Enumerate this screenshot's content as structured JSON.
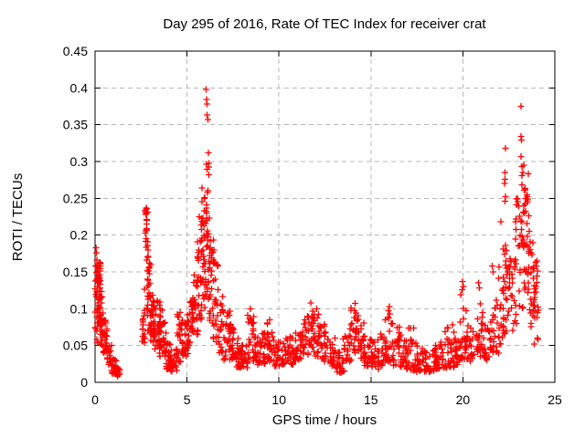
{
  "window": {
    "background": "#ffffff",
    "border_color": "#000000",
    "text_color": "#000000"
  },
  "chart_data": {
    "type": "scatter",
    "title": "Day 295 of 2016, Rate Of TEC Index for receiver crat",
    "xlabel": "GPS time / hours",
    "ylabel": "ROTI / TECUs",
    "xlim": [
      0,
      25
    ],
    "ylim": [
      0,
      0.45
    ],
    "xticks": {
      "values": [
        0,
        5,
        10,
        15,
        20,
        25
      ],
      "labels": [
        "0",
        "5",
        "10",
        "15",
        "20",
        "25"
      ]
    },
    "yticks": {
      "values": [
        0,
        0.05,
        0.1,
        0.15,
        0.2,
        0.25,
        0.3,
        0.35,
        0.4,
        0.45
      ],
      "labels": [
        "0",
        "0.05",
        "0.1",
        "0.15",
        "0.2",
        "0.25",
        "0.3",
        "0.35",
        "0.4",
        "0.45"
      ]
    },
    "grid": {
      "show": true,
      "color": "#b8b8b8",
      "dash": "5,4"
    },
    "legend": "none",
    "marker": {
      "shape": "plus",
      "color": "#ff0000",
      "size": 7,
      "stroke_width": 1.35
    },
    "seed": 20161021,
    "bin_format": [
      "x_start_hours",
      "x_end_hours",
      "count",
      "y_min",
      "y_max",
      "low_bias_exponent"
    ],
    "point_bins": [
      [
        0.0,
        0.15,
        21,
        0.045,
        0.185,
        0.7
      ],
      [
        0.1,
        0.3,
        39,
        0.075,
        0.165,
        1.0
      ],
      [
        0.25,
        0.45,
        30,
        0.05,
        0.125,
        1.2
      ],
      [
        0.45,
        0.65,
        24,
        0.035,
        0.085,
        1.3
      ],
      [
        0.65,
        0.9,
        21,
        0.022,
        0.055,
        1.3
      ],
      [
        0.9,
        1.15,
        16,
        0.012,
        0.035,
        1.4
      ],
      [
        1.15,
        1.35,
        12,
        0.008,
        0.02,
        1.2
      ],
      [
        2.55,
        2.72,
        18,
        0.05,
        0.13,
        1.2
      ],
      [
        2.72,
        2.88,
        24,
        0.09,
        0.237,
        0.9
      ],
      [
        2.85,
        3.05,
        27,
        0.07,
        0.185,
        1.3
      ],
      [
        3.0,
        3.25,
        27,
        0.055,
        0.13,
        1.4
      ],
      [
        3.2,
        3.55,
        33,
        0.045,
        0.115,
        1.4
      ],
      [
        3.5,
        3.85,
        30,
        0.035,
        0.1,
        1.5
      ],
      [
        3.85,
        4.15,
        21,
        0.018,
        0.055,
        1.3
      ],
      [
        4.1,
        4.45,
        21,
        0.014,
        0.045,
        1.2
      ],
      [
        4.4,
        4.75,
        24,
        0.028,
        0.095,
        1.5
      ],
      [
        4.7,
        5.05,
        24,
        0.035,
        0.085,
        1.3
      ],
      [
        5.0,
        5.35,
        26,
        0.05,
        0.115,
        1.3
      ],
      [
        5.3,
        5.6,
        26,
        0.065,
        0.155,
        1.3
      ],
      [
        5.55,
        5.8,
        24,
        0.085,
        0.225,
        1.4
      ],
      [
        5.78,
        6.0,
        30,
        0.1,
        0.255,
        1.3
      ],
      [
        6.0,
        6.22,
        33,
        0.11,
        0.3,
        1.5
      ],
      [
        6.2,
        6.45,
        27,
        0.08,
        0.21,
        1.4
      ],
      [
        6.42,
        6.7,
        24,
        0.055,
        0.165,
        1.4
      ],
      [
        6.68,
        7.0,
        21,
        0.04,
        0.12,
        1.5
      ],
      [
        7.0,
        7.35,
        21,
        0.03,
        0.105,
        1.6
      ],
      [
        7.3,
        7.65,
        26,
        0.032,
        0.08,
        1.3
      ],
      [
        7.6,
        7.95,
        21,
        0.02,
        0.06,
        1.3
      ],
      [
        7.9,
        8.3,
        23,
        0.02,
        0.052,
        1.2
      ],
      [
        8.3,
        8.65,
        23,
        0.028,
        0.1,
        1.7
      ],
      [
        8.6,
        9.0,
        23,
        0.024,
        0.062,
        1.3
      ],
      [
        9.0,
        9.4,
        23,
        0.025,
        0.072,
        1.4
      ],
      [
        9.35,
        9.7,
        20,
        0.028,
        0.09,
        1.6
      ],
      [
        9.7,
        10.3,
        30,
        0.02,
        0.058,
        1.3
      ],
      [
        10.3,
        10.8,
        27,
        0.024,
        0.062,
        1.3
      ],
      [
        10.8,
        11.3,
        27,
        0.03,
        0.068,
        1.3
      ],
      [
        11.3,
        11.6,
        20,
        0.038,
        0.09,
        1.4
      ],
      [
        11.6,
        11.95,
        24,
        0.045,
        0.11,
        1.2
      ],
      [
        11.9,
        12.25,
        21,
        0.035,
        0.1,
        1.4
      ],
      [
        12.2,
        12.6,
        23,
        0.028,
        0.08,
        1.4
      ],
      [
        12.6,
        13.05,
        23,
        0.022,
        0.06,
        1.3
      ],
      [
        13.0,
        13.55,
        23,
        0.012,
        0.042,
        1.2
      ],
      [
        13.5,
        13.95,
        23,
        0.028,
        0.08,
        1.4
      ],
      [
        13.9,
        14.35,
        26,
        0.04,
        0.108,
        1.3
      ],
      [
        14.3,
        14.65,
        20,
        0.032,
        0.09,
        1.4
      ],
      [
        14.6,
        15.05,
        23,
        0.022,
        0.065,
        1.4
      ],
      [
        15.0,
        15.45,
        23,
        0.018,
        0.058,
        1.3
      ],
      [
        15.4,
        15.8,
        21,
        0.022,
        0.072,
        1.4
      ],
      [
        15.75,
        16.2,
        26,
        0.028,
        0.105,
        1.5
      ],
      [
        16.2,
        16.65,
        23,
        0.022,
        0.08,
        1.5
      ],
      [
        16.6,
        17.05,
        23,
        0.016,
        0.058,
        1.4
      ],
      [
        17.0,
        17.55,
        26,
        0.014,
        0.085,
        1.7
      ],
      [
        17.5,
        18.05,
        27,
        0.013,
        0.05,
        1.4
      ],
      [
        18.0,
        18.55,
        27,
        0.014,
        0.046,
        1.3
      ],
      [
        18.5,
        19.05,
        27,
        0.018,
        0.056,
        1.4
      ],
      [
        19.0,
        19.55,
        27,
        0.02,
        0.08,
        1.5
      ],
      [
        19.5,
        19.9,
        23,
        0.024,
        0.062,
        1.4
      ],
      [
        19.85,
        20.2,
        23,
        0.03,
        0.13,
        1.6
      ],
      [
        20.2,
        20.6,
        20,
        0.028,
        0.08,
        1.4
      ],
      [
        20.6,
        21.1,
        27,
        0.035,
        0.128,
        1.5
      ],
      [
        21.1,
        21.5,
        21,
        0.03,
        0.08,
        1.3
      ],
      [
        21.5,
        21.95,
        23,
        0.038,
        0.12,
        1.4
      ],
      [
        21.9,
        22.25,
        21,
        0.05,
        0.16,
        1.4
      ],
      [
        22.2,
        22.45,
        15,
        0.06,
        0.2,
        1.2
      ],
      [
        22.45,
        22.75,
        18,
        0.06,
        0.18,
        1.3
      ],
      [
        22.75,
        23.05,
        21,
        0.08,
        0.25,
        1.2
      ],
      [
        23.05,
        23.35,
        24,
        0.1,
        0.3,
        1.2
      ],
      [
        23.3,
        23.6,
        27,
        0.12,
        0.265,
        1.0
      ],
      [
        23.55,
        23.85,
        20,
        0.075,
        0.21,
        1.2
      ],
      [
        23.85,
        24.15,
        18,
        0.05,
        0.165,
        1.0
      ]
    ],
    "outlier_points": [
      [
        6.05,
        0.398
      ],
      [
        6.07,
        0.384
      ],
      [
        6.08,
        0.378
      ],
      [
        6.1,
        0.363
      ],
      [
        6.13,
        0.357
      ],
      [
        6.17,
        0.312
      ],
      [
        5.82,
        0.264
      ],
      [
        2.79,
        0.237
      ],
      [
        2.77,
        0.228
      ],
      [
        2.82,
        0.221
      ],
      [
        23.17,
        0.375
      ],
      [
        23.16,
        0.334
      ],
      [
        23.18,
        0.329
      ],
      [
        22.32,
        0.318
      ],
      [
        23.17,
        0.307
      ],
      [
        23.3,
        0.295
      ],
      [
        23.56,
        0.283
      ],
      [
        22.28,
        0.285
      ],
      [
        22.3,
        0.276
      ],
      [
        22.27,
        0.27
      ],
      [
        22.31,
        0.252
      ],
      [
        22.29,
        0.246
      ],
      [
        23.49,
        0.255
      ],
      [
        23.51,
        0.252
      ],
      [
        23.53,
        0.248
      ],
      [
        23.47,
        0.25
      ],
      [
        23.5,
        0.245
      ],
      [
        22.07,
        0.218
      ],
      [
        19.97,
        0.137
      ],
      [
        20.02,
        0.13
      ],
      [
        20.85,
        0.135
      ],
      [
        20.9,
        0.128
      ],
      [
        21.6,
        0.158
      ],
      [
        21.65,
        0.15
      ],
      [
        22.35,
        0.165
      ],
      [
        22.37,
        0.155
      ],
      [
        11.72,
        0.108
      ],
      [
        14.15,
        0.107
      ],
      [
        16.0,
        0.103
      ],
      [
        8.45,
        0.1
      ],
      [
        23.95,
        0.163
      ],
      [
        24.0,
        0.158
      ],
      [
        23.98,
        0.13
      ],
      [
        23.87,
        0.122
      ],
      [
        23.9,
        0.115
      ],
      [
        24.05,
        0.095
      ],
      [
        24.02,
        0.088
      ],
      [
        24.08,
        0.058
      ],
      [
        0.05,
        0.183
      ],
      [
        0.08,
        0.176
      ],
      [
        0.03,
        0.158
      ]
    ]
  }
}
